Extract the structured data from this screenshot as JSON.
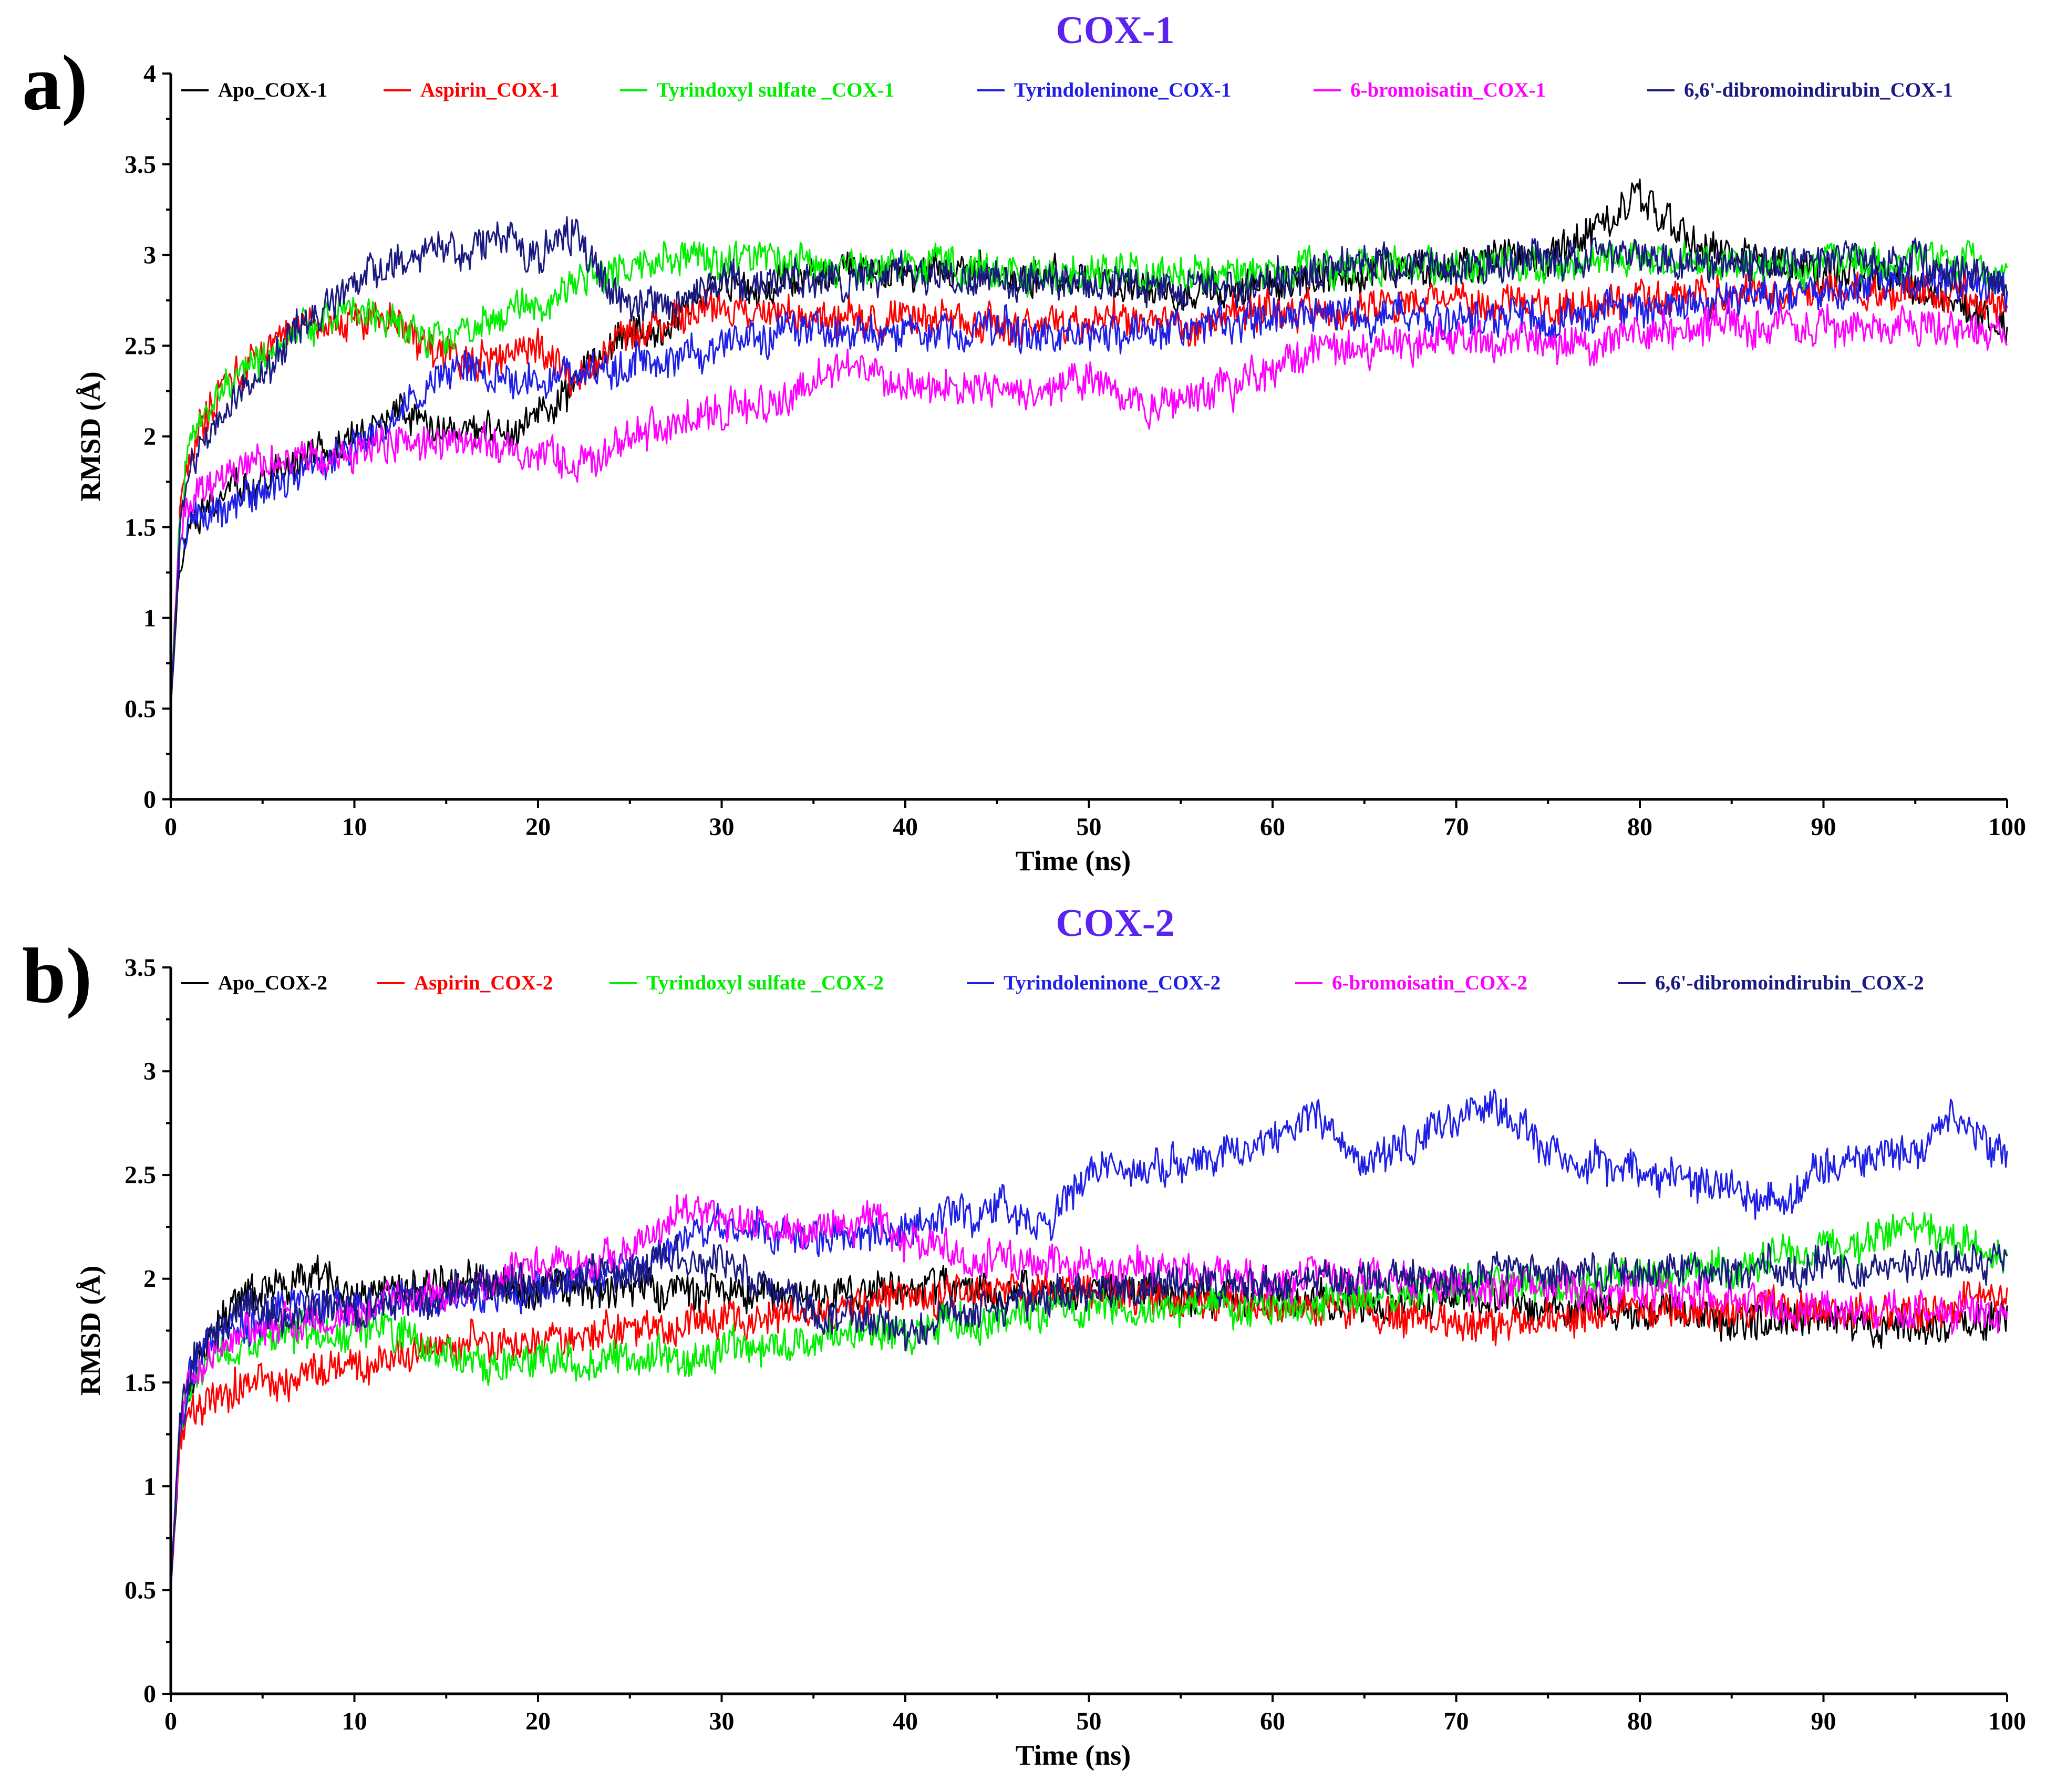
{
  "colors": {
    "title": "#5b22f0",
    "series": [
      "#000000",
      "#ff0000",
      "#00ee00",
      "#1f1fe6",
      "#ff00ff",
      "#1a1a80"
    ]
  },
  "chart_data": [
    {
      "type": "line",
      "panel_label": "a)",
      "title": "COX-1",
      "xlabel": "Time (ns)",
      "ylabel": "RMSD (Å)",
      "xlim": [
        0,
        100
      ],
      "ylim": [
        0,
        4
      ],
      "x_ticks": [
        "0",
        "10",
        "20",
        "30",
        "40",
        "50",
        "60",
        "70",
        "80",
        "90",
        "100"
      ],
      "y_ticks": [
        "0",
        "0.5",
        "1",
        "1.5",
        "2",
        "2.5",
        "3",
        "3.5",
        "4"
      ],
      "grid": false,
      "legend_position": "top",
      "series": [
        {
          "name": "Apo_COX-1",
          "x": [
            0,
            0.5,
            1,
            2,
            3,
            5,
            7,
            10,
            12,
            14,
            16,
            18,
            20,
            22,
            24,
            26,
            28,
            30,
            33,
            36,
            40,
            45,
            50,
            55,
            60,
            65,
            70,
            75,
            78,
            80,
            82,
            85,
            90,
            95,
            100
          ],
          "values": [
            0.5,
            1.3,
            1.55,
            1.65,
            1.7,
            1.75,
            1.85,
            2.0,
            2.15,
            2.1,
            2.05,
            2.0,
            2.1,
            2.3,
            2.5,
            2.6,
            2.7,
            2.8,
            2.85,
            2.9,
            2.9,
            2.9,
            2.85,
            2.8,
            2.85,
            2.9,
            2.95,
            3.0,
            3.15,
            3.35,
            3.15,
            3.0,
            2.9,
            2.85,
            2.6
          ]
        },
        {
          "name": "Aspirin_COX-1",
          "x": [
            0,
            0.5,
            1,
            2,
            3,
            5,
            7,
            10,
            12,
            14,
            16,
            18,
            20,
            22,
            24,
            26,
            28,
            30,
            33,
            36,
            40,
            45,
            50,
            55,
            60,
            65,
            70,
            75,
            80,
            85,
            90,
            95,
            100
          ],
          "values": [
            0.5,
            1.6,
            1.9,
            2.1,
            2.3,
            2.5,
            2.6,
            2.65,
            2.65,
            2.5,
            2.4,
            2.45,
            2.5,
            2.3,
            2.5,
            2.6,
            2.7,
            2.7,
            2.7,
            2.65,
            2.65,
            2.6,
            2.65,
            2.6,
            2.7,
            2.7,
            2.75,
            2.7,
            2.75,
            2.8,
            2.8,
            2.8,
            2.7
          ]
        },
        {
          "name": "Tyrindoxyl sulfate _COX-1",
          "x": [
            0,
            0.5,
            1,
            2,
            3,
            5,
            7,
            10,
            12,
            14,
            16,
            18,
            20,
            22,
            24,
            26,
            28,
            30,
            33,
            36,
            40,
            45,
            50,
            55,
            60,
            65,
            70,
            75,
            80,
            85,
            90,
            95,
            100
          ],
          "values": [
            0.5,
            1.6,
            1.9,
            2.15,
            2.3,
            2.45,
            2.6,
            2.7,
            2.65,
            2.55,
            2.55,
            2.65,
            2.7,
            2.85,
            2.9,
            2.95,
            3.0,
            3.0,
            2.95,
            2.95,
            2.95,
            2.9,
            2.9,
            2.9,
            2.9,
            2.95,
            2.95,
            2.95,
            3.0,
            2.95,
            2.95,
            2.95,
            2.9
          ]
        },
        {
          "name": "Tyrindoleninone_COX-1",
          "x": [
            0,
            0.5,
            1,
            2,
            3,
            5,
            7,
            10,
            12,
            14,
            16,
            18,
            20,
            22,
            24,
            26,
            28,
            30,
            33,
            36,
            40,
            45,
            50,
            55,
            60,
            65,
            70,
            75,
            80,
            85,
            90,
            95,
            100
          ],
          "values": [
            0.5,
            1.4,
            1.5,
            1.55,
            1.6,
            1.7,
            1.8,
            1.95,
            2.1,
            2.25,
            2.35,
            2.3,
            2.3,
            2.35,
            2.4,
            2.4,
            2.45,
            2.5,
            2.6,
            2.6,
            2.55,
            2.6,
            2.55,
            2.6,
            2.65,
            2.65,
            2.65,
            2.65,
            2.7,
            2.75,
            2.8,
            2.85,
            2.8
          ]
        },
        {
          "name": "6-bromoisatin_COX-1",
          "x": [
            0,
            0.5,
            1,
            2,
            3,
            5,
            7,
            10,
            12,
            14,
            16,
            18,
            20,
            22,
            24,
            26,
            28,
            30,
            33,
            36,
            40,
            45,
            50,
            53,
            55,
            58,
            60,
            65,
            70,
            75,
            80,
            85,
            90,
            95,
            100
          ],
          "values": [
            0.5,
            1.5,
            1.65,
            1.75,
            1.8,
            1.85,
            1.9,
            1.9,
            1.95,
            1.95,
            2.0,
            1.95,
            1.9,
            1.85,
            1.95,
            2.05,
            2.1,
            2.15,
            2.2,
            2.35,
            2.3,
            2.25,
            2.3,
            2.15,
            2.2,
            2.25,
            2.4,
            2.5,
            2.55,
            2.5,
            2.55,
            2.6,
            2.6,
            2.6,
            2.55
          ]
        },
        {
          "name": "6,6'-dibromoindirubin_COX-1",
          "x": [
            0,
            0.5,
            1,
            2,
            3,
            5,
            7,
            10,
            12,
            14,
            16,
            18,
            20,
            22,
            23,
            25,
            27,
            30,
            33,
            36,
            40,
            45,
            50,
            55,
            60,
            65,
            70,
            75,
            80,
            85,
            90,
            95,
            100
          ],
          "values": [
            0.5,
            1.5,
            1.8,
            2.0,
            2.15,
            2.35,
            2.55,
            2.85,
            2.95,
            3.0,
            3.05,
            3.1,
            3.0,
            3.15,
            2.95,
            2.7,
            2.75,
            2.85,
            2.85,
            2.85,
            2.9,
            2.85,
            2.85,
            2.8,
            2.85,
            2.95,
            2.95,
            3.0,
            3.0,
            2.95,
            2.95,
            2.95,
            2.85
          ]
        }
      ]
    },
    {
      "type": "line",
      "panel_label": "b)",
      "title": "COX-2",
      "xlabel": "Time (ns)",
      "ylabel": "RMSD (Å)",
      "xlim": [
        0,
        100
      ],
      "ylim": [
        0,
        3.5
      ],
      "x_ticks": [
        "0",
        "10",
        "20",
        "30",
        "40",
        "50",
        "60",
        "70",
        "80",
        "90",
        "100"
      ],
      "y_ticks": [
        "0",
        "0.5",
        "1",
        "1.5",
        "2",
        "2.5",
        "3",
        "3.5"
      ],
      "grid": false,
      "legend_position": "top",
      "series": [
        {
          "name": "Apo_COX-2",
          "x": [
            0,
            0.5,
            1,
            2,
            3,
            5,
            7,
            10,
            13,
            16,
            20,
            25,
            30,
            35,
            40,
            45,
            50,
            55,
            60,
            65,
            70,
            75,
            80,
            85,
            90,
            95,
            100
          ],
          "values": [
            0.5,
            1.2,
            1.45,
            1.7,
            1.85,
            1.95,
            2.0,
            1.95,
            1.95,
            2.0,
            1.95,
            1.95,
            1.95,
            1.9,
            1.95,
            1.95,
            1.95,
            1.95,
            1.9,
            1.9,
            1.9,
            1.85,
            1.85,
            1.8,
            1.8,
            1.75,
            1.8
          ]
        },
        {
          "name": "Aspirin_COX-2",
          "x": [
            0,
            0.5,
            1,
            2,
            3,
            5,
            7,
            10,
            13,
            16,
            20,
            25,
            30,
            35,
            40,
            45,
            50,
            55,
            60,
            65,
            70,
            75,
            80,
            85,
            90,
            95,
            100
          ],
          "values": [
            0.5,
            1.2,
            1.35,
            1.4,
            1.45,
            1.5,
            1.55,
            1.6,
            1.65,
            1.7,
            1.7,
            1.75,
            1.8,
            1.85,
            1.9,
            1.95,
            1.95,
            1.9,
            1.85,
            1.85,
            1.8,
            1.8,
            1.85,
            1.85,
            1.85,
            1.85,
            1.9
          ]
        },
        {
          "name": "Tyrindoxyl sulfate _COX-2",
          "x": [
            0,
            0.5,
            1,
            2,
            3,
            5,
            7,
            10,
            13,
            16,
            20,
            25,
            30,
            35,
            40,
            45,
            50,
            55,
            60,
            65,
            70,
            75,
            80,
            85,
            90,
            95,
            100
          ],
          "values": [
            0.5,
            1.3,
            1.45,
            1.6,
            1.65,
            1.7,
            1.75,
            1.75,
            1.7,
            1.6,
            1.6,
            1.6,
            1.65,
            1.7,
            1.75,
            1.8,
            1.85,
            1.85,
            1.85,
            1.9,
            1.95,
            1.95,
            2.0,
            2.05,
            2.15,
            2.25,
            2.1
          ]
        },
        {
          "name": "Tyrindoleninone_COX-2",
          "x": [
            0,
            0.5,
            1,
            2,
            3,
            5,
            7,
            10,
            13,
            16,
            20,
            25,
            30,
            35,
            40,
            45,
            48,
            50,
            55,
            60,
            62,
            65,
            70,
            72,
            75,
            80,
            85,
            88,
            90,
            95,
            97,
            100
          ],
          "values": [
            0.5,
            1.3,
            1.5,
            1.65,
            1.75,
            1.8,
            1.85,
            1.85,
            1.9,
            1.9,
            1.95,
            2.05,
            2.25,
            2.2,
            2.25,
            2.35,
            2.25,
            2.55,
            2.55,
            2.65,
            2.8,
            2.55,
            2.75,
            2.85,
            2.6,
            2.5,
            2.45,
            2.35,
            2.55,
            2.6,
            2.8,
            2.6
          ]
        },
        {
          "name": "6-bromoisatin_COX-2",
          "x": [
            0,
            0.5,
            1,
            2,
            3,
            5,
            7,
            10,
            13,
            16,
            20,
            25,
            28,
            30,
            33,
            35,
            38,
            40,
            45,
            50,
            55,
            60,
            65,
            70,
            75,
            80,
            85,
            90,
            95,
            100
          ],
          "values": [
            0.5,
            1.3,
            1.5,
            1.6,
            1.7,
            1.75,
            1.8,
            1.85,
            1.9,
            1.95,
            2.05,
            2.15,
            2.35,
            2.3,
            2.25,
            2.2,
            2.3,
            2.15,
            2.1,
            2.05,
            2.05,
            2.0,
            2.0,
            1.95,
            1.95,
            1.95,
            1.9,
            1.85,
            1.85,
            1.85
          ]
        },
        {
          "name": "6,6'-dibromoindirubin_COX-2",
          "x": [
            0,
            0.5,
            1,
            2,
            3,
            5,
            7,
            10,
            13,
            16,
            20,
            25,
            30,
            33,
            35,
            38,
            40,
            45,
            50,
            55,
            60,
            65,
            70,
            75,
            80,
            85,
            90,
            95,
            100
          ],
          "values": [
            0.5,
            1.3,
            1.55,
            1.7,
            1.8,
            1.85,
            1.85,
            1.85,
            1.9,
            1.95,
            1.95,
            2.05,
            2.1,
            1.95,
            1.85,
            1.8,
            1.75,
            1.85,
            1.95,
            1.95,
            2.0,
            2.0,
            2.0,
            2.05,
            2.05,
            2.05,
            2.05,
            2.05,
            2.1
          ]
        }
      ]
    }
  ]
}
